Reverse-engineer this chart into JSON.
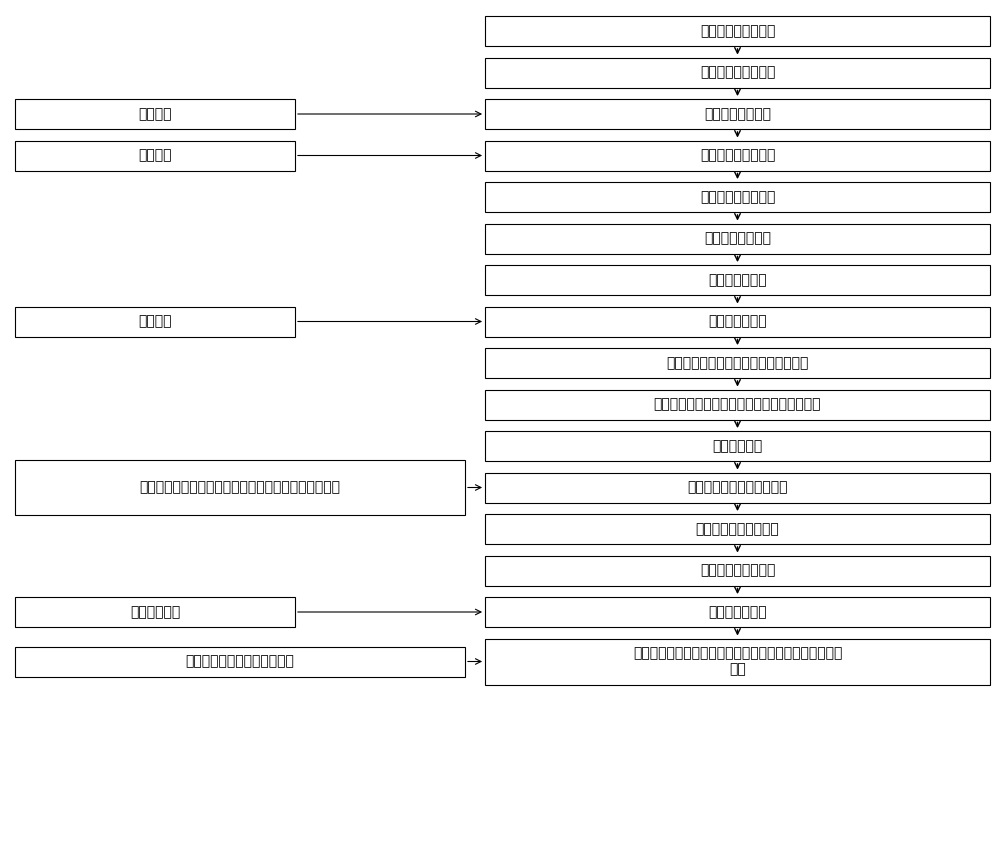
{
  "bg_color": "#ffffff",
  "box_color": "#ffffff",
  "box_edge_color": "#000000",
  "text_color": "#000000",
  "arrow_color": "#000000",
  "font_size": 10,
  "right_boxes": [
    "安装第一节墩柱钢筋",
    "安装第一节墩柱模板",
    "浇筑第一节墩柱砼",
    "安装第二节墩柱钢筋",
    "安装第二节墩柱模板",
    "浇筑第二节墩柱砼",
    "拆除第一节模板",
    "安装第三节钢筋",
    "安装第三节模板（模板使用第一节的）",
    "浇筑第三节混凝土，依次循环，至中系梁位置",
    "安装墩柱钢筋",
    "安装墩柱模板、中系梁底模",
    "安装中系梁钢筋、侧模",
    "浇筑墩柱、中系梁砼",
    "拆除中系梁模板",
    "安装墩柱钢筋、模板、浇筑砼（工艺同前）依次循环，至\n墩顶"
  ],
  "left_boxes": [
    {
      "text": "桁架组装",
      "connects_to": 2
    },
    {
      "text": "桁架提升",
      "connects_to": 3
    },
    {
      "text": "桁架提升",
      "connects_to": 7
    },
    {
      "text": "拆除内侧横向桁架，在辅助平台上搭设中系梁支撑体系",
      "connects_to": 11
    },
    {
      "text": "拆除支撑体系",
      "connects_to": 14
    },
    {
      "text": "安装内侧横向桁架，依次提升",
      "connects_to": 15
    }
  ]
}
